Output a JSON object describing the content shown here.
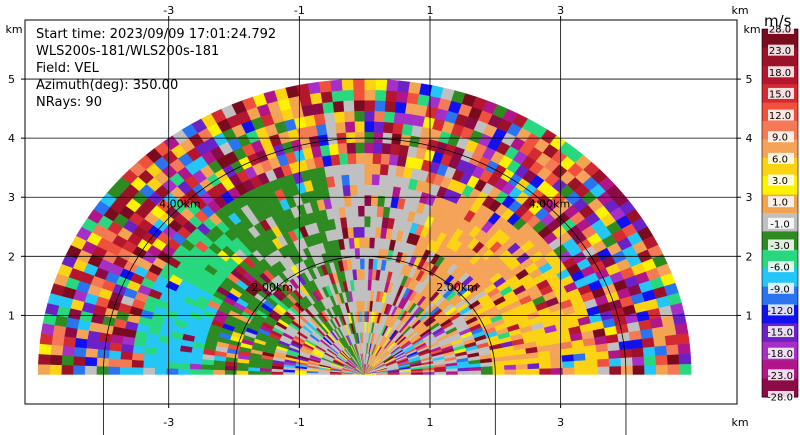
{
  "chart_data": {
    "type": "heatmap",
    "title_lines": [
      "Start time: 2023/09/09 17:01:24.792",
      "WLS200s-181/WLS200s-181",
      "Field: VEL",
      "Azimuth(deg): 350.00",
      "NRays: 90"
    ],
    "xlabel": "km",
    "ylabel": "km",
    "xlim": [
      -5.2,
      5.7
    ],
    "ylim": [
      -0.5,
      6.0
    ],
    "xticks": [
      -3,
      -1,
      1,
      3
    ],
    "yticks": [
      1,
      2,
      3,
      4,
      5
    ],
    "grid": true,
    "range_rings": [
      {
        "label": "2.00km",
        "radius_km": 2.0
      },
      {
        "label": "4.00km",
        "radius_km": 4.0
      }
    ],
    "sector": {
      "azimuth_start_deg": 270,
      "azimuth_end_deg": 90,
      "max_range_km": 5.0,
      "nrays": 90
    },
    "colorbar": {
      "label": "m/s",
      "tick_labels": [
        "28.0",
        "23.0",
        "18.0",
        "15.0",
        "12.0",
        "9.0",
        "6.0",
        "3.0",
        "1.0",
        "-1.0",
        "-3.0",
        "-6.0",
        "-9.0",
        "-12.0",
        "-15.0",
        "-18.0",
        "-23.0",
        "-28.0"
      ],
      "colors": [
        "#7a0a1e",
        "#9b1228",
        "#b5162f",
        "#d42a32",
        "#f0513d",
        "#f47a55",
        "#f6a35a",
        "#fbd313",
        "#fdf200",
        "#f2a450",
        "#c0c0c0",
        "#2e8b22",
        "#28d87e",
        "#24c5f7",
        "#2a74f0",
        "#1010f0",
        "#6b21c6",
        "#a62fc8",
        "#b0158a",
        "#8a0b46"
      ]
    }
  }
}
